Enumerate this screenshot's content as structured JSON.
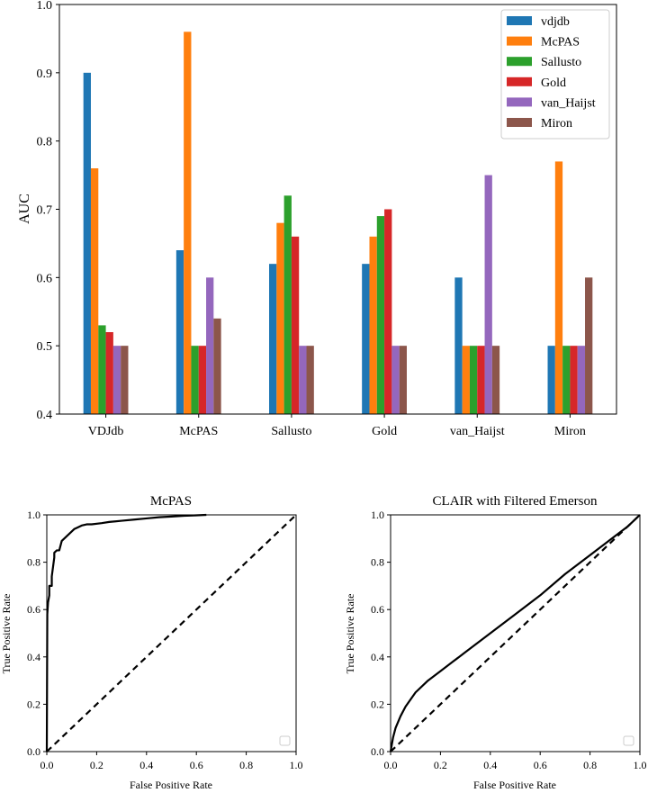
{
  "chart_data": [
    {
      "type": "bar",
      "title": "",
      "xlabel": "",
      "ylabel": "AUC",
      "ylim": [
        0.4,
        1.0
      ],
      "yticks": [
        "0.4",
        "0.5",
        "0.6",
        "0.7",
        "0.8",
        "0.9",
        "1.0"
      ],
      "categories": [
        "VDJdb",
        "McPAS",
        "Sallusto",
        "Gold",
        "van_Haijst",
        "Miron"
      ],
      "legend_position": "top-right",
      "grid": false,
      "series": [
        {
          "name": "vdjdb",
          "color": "#1f77b4",
          "values": [
            0.9,
            0.64,
            0.62,
            0.62,
            0.6,
            0.5
          ]
        },
        {
          "name": "McPAS",
          "color": "#ff7f0e",
          "values": [
            0.76,
            0.96,
            0.68,
            0.66,
            0.5,
            0.77
          ]
        },
        {
          "name": "Sallusto",
          "color": "#2ca02c",
          "values": [
            0.53,
            0.5,
            0.72,
            0.69,
            0.5,
            0.5
          ]
        },
        {
          "name": "Gold",
          "color": "#d62728",
          "values": [
            0.52,
            0.5,
            0.66,
            0.7,
            0.5,
            0.5
          ]
        },
        {
          "name": "van_Haijst",
          "color": "#9467bd",
          "values": [
            0.5,
            0.6,
            0.5,
            0.5,
            0.75,
            0.5
          ]
        },
        {
          "name": "Miron",
          "color": "#8c564b",
          "values": [
            0.5,
            0.54,
            0.5,
            0.5,
            0.5,
            0.6
          ]
        }
      ]
    },
    {
      "type": "line",
      "title": "McPAS",
      "xlabel": "False Positive Rate",
      "ylabel": "True Positive Rate",
      "xlim": [
        0,
        1
      ],
      "ylim": [
        0,
        1
      ],
      "xticks": [
        "0.0",
        "0.2",
        "0.4",
        "0.6",
        "0.8",
        "1.0"
      ],
      "yticks": [
        "0.0",
        "0.2",
        "0.4",
        "0.6",
        "0.8",
        "1.0"
      ],
      "grid": false,
      "legend_position": "lower-right",
      "series": [
        {
          "style": "solid",
          "color": "#000000",
          "x": [
            0,
            0.002,
            0.005,
            0.01,
            0.01,
            0.02,
            0.02,
            0.03,
            0.03,
            0.04,
            0.05,
            0.06,
            0.07,
            0.08,
            0.09,
            0.1,
            0.11,
            0.12,
            0.14,
            0.16,
            0.18,
            0.22,
            0.25,
            0.3,
            0.35,
            0.4,
            0.45,
            0.5,
            0.55,
            0.6,
            0.64
          ],
          "y": [
            0,
            0.58,
            0.63,
            0.66,
            0.7,
            0.7,
            0.74,
            0.82,
            0.84,
            0.85,
            0.85,
            0.89,
            0.9,
            0.91,
            0.92,
            0.93,
            0.94,
            0.945,
            0.955,
            0.96,
            0.96,
            0.965,
            0.97,
            0.975,
            0.98,
            0.985,
            0.99,
            0.993,
            0.996,
            0.998,
            1.0
          ]
        },
        {
          "style": "dashed",
          "color": "#000000",
          "x": [
            0,
            1
          ],
          "y": [
            0,
            1
          ]
        }
      ]
    },
    {
      "type": "line",
      "title": "CLAIR with Filtered Emerson",
      "xlabel": "False Positive Rate",
      "ylabel": "True Positive Rate",
      "xlim": [
        0,
        1
      ],
      "ylim": [
        0,
        1
      ],
      "xticks": [
        "0.0",
        "0.2",
        "0.4",
        "0.6",
        "0.8",
        "1.0"
      ],
      "yticks": [
        "0.0",
        "0.2",
        "0.4",
        "0.6",
        "0.8",
        "1.0"
      ],
      "grid": false,
      "legend_position": "lower-right",
      "series": [
        {
          "style": "solid",
          "color": "#000000",
          "x": [
            0,
            0.01,
            0.02,
            0.04,
            0.06,
            0.08,
            0.1,
            0.15,
            0.2,
            0.25,
            0.3,
            0.4,
            0.5,
            0.6,
            0.7,
            0.8,
            0.9,
            0.95,
            1.0
          ],
          "y": [
            0,
            0.06,
            0.1,
            0.15,
            0.19,
            0.22,
            0.25,
            0.3,
            0.34,
            0.38,
            0.42,
            0.5,
            0.58,
            0.66,
            0.75,
            0.83,
            0.91,
            0.95,
            1.0
          ]
        },
        {
          "style": "dashed",
          "color": "#000000",
          "x": [
            0,
            1
          ],
          "y": [
            0,
            1
          ]
        }
      ]
    }
  ]
}
